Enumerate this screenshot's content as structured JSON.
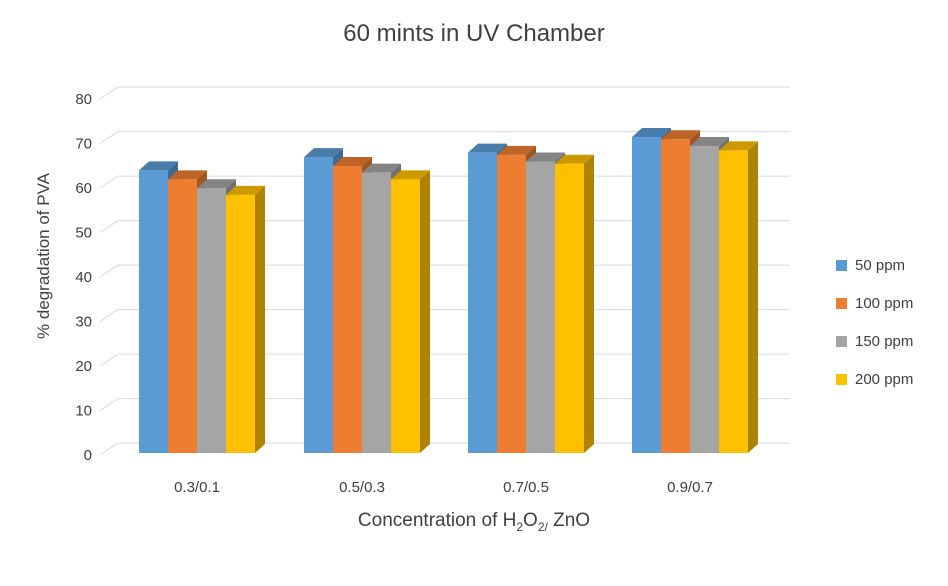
{
  "chart_data": {
    "type": "bar",
    "title": "60 mints in UV Chamber",
    "ylabel": "% degradation of PVA",
    "xlabel_parts": [
      "Concentration of H",
      "2",
      "O",
      "2/",
      " ZnO"
    ],
    "categories": [
      "0.3/0.1",
      "0.5/0.3",
      "0.7/0.5",
      "0.9/0.7"
    ],
    "ylim": [
      0,
      80
    ],
    "yticks": [
      "0",
      "10",
      "20",
      "30",
      "40",
      "50",
      "60",
      "70",
      "80"
    ],
    "grid": true,
    "legend_position": "right",
    "series": [
      {
        "name": "50 ppm",
        "color": "#5b9bd5",
        "values": [
          63.5,
          66.5,
          67.5,
          71
        ]
      },
      {
        "name": "100 ppm",
        "color": "#ed7d31",
        "values": [
          61.5,
          64.5,
          67,
          70.5
        ]
      },
      {
        "name": "150 ppm",
        "color": "#a5a5a5",
        "values": [
          59.5,
          63,
          65.5,
          69
        ]
      },
      {
        "name": "200 ppm",
        "color": "#ffc000",
        "values": [
          58,
          61.5,
          65,
          68
        ]
      }
    ]
  }
}
